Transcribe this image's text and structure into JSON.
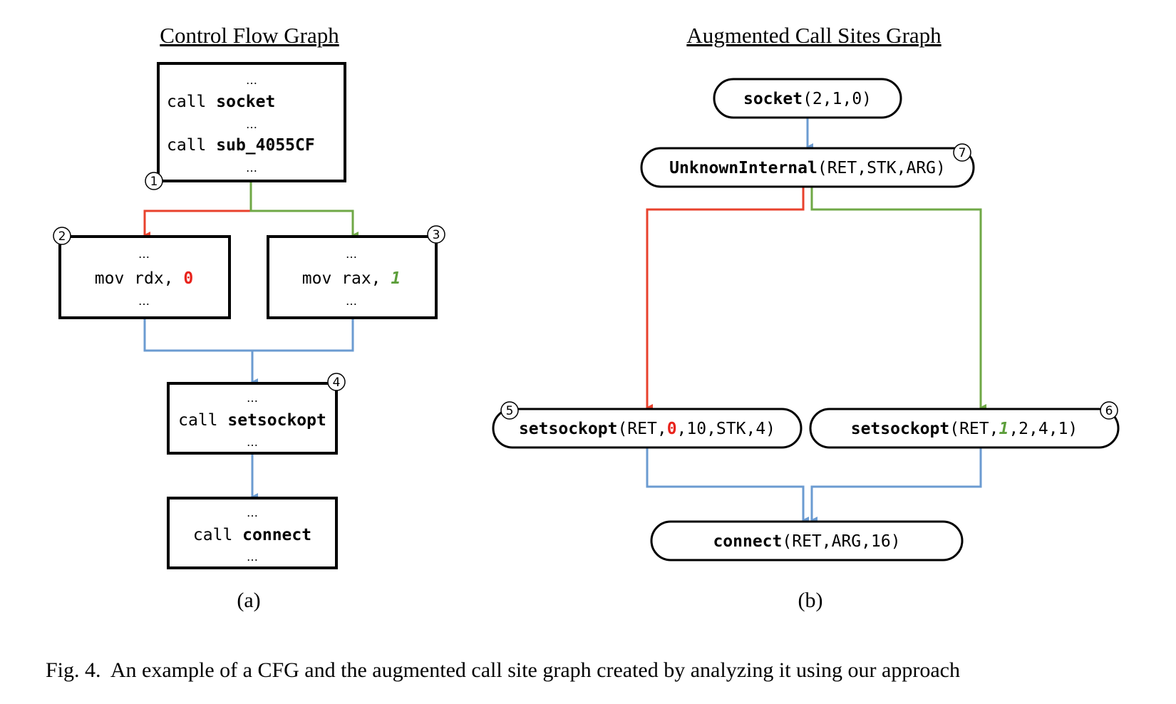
{
  "cfg": {
    "title": "Control Flow Graph",
    "sublabel": "(a)",
    "ellipsis": "…",
    "block1": {
      "badge": "1",
      "line1_kw": "call ",
      "line1_fn": "socket",
      "line2_kw": "call ",
      "line2_fn": "sub_4055CF"
    },
    "block2": {
      "badge": "2",
      "text": "mov rdx, ",
      "value": "0"
    },
    "block3": {
      "badge": "3",
      "text": "mov rax, ",
      "value": "1"
    },
    "block4": {
      "badge": "4",
      "kw": "call ",
      "fn": "setsockopt"
    },
    "block5": {
      "kw": "call ",
      "fn": "connect"
    }
  },
  "acsg": {
    "title": "Augmented Call Sites Graph",
    "sublabel": "(b)",
    "socket": {
      "fn": "socket",
      "args": "(2,1,0)"
    },
    "unknown": {
      "badge": "7",
      "fn": "UnknownInternal",
      "args": "(RET,STK,ARG)"
    },
    "setsockopt_left": {
      "badge": "5",
      "fn": "setsockopt",
      "args_pre": "(RET,",
      "value": "0",
      "args_post": ",10,STK,4)"
    },
    "setsockopt_right": {
      "badge": "6",
      "fn": "setsockopt",
      "args_pre": "(RET,",
      "value": "1",
      "args_post": ",2,4,1)"
    },
    "connect": {
      "fn": "connect",
      "args": "(RET,ARG,16)"
    }
  },
  "caption": "Fig. 4.  An example of a CFG and the augmented call site graph created by analyzing it using our approach",
  "colors": {
    "red_path": "#e8412c",
    "green_path": "#6fa846",
    "blue_path": "#6b9bd1",
    "red_value": "#e8231c",
    "green_value": "#5c9e3a"
  }
}
